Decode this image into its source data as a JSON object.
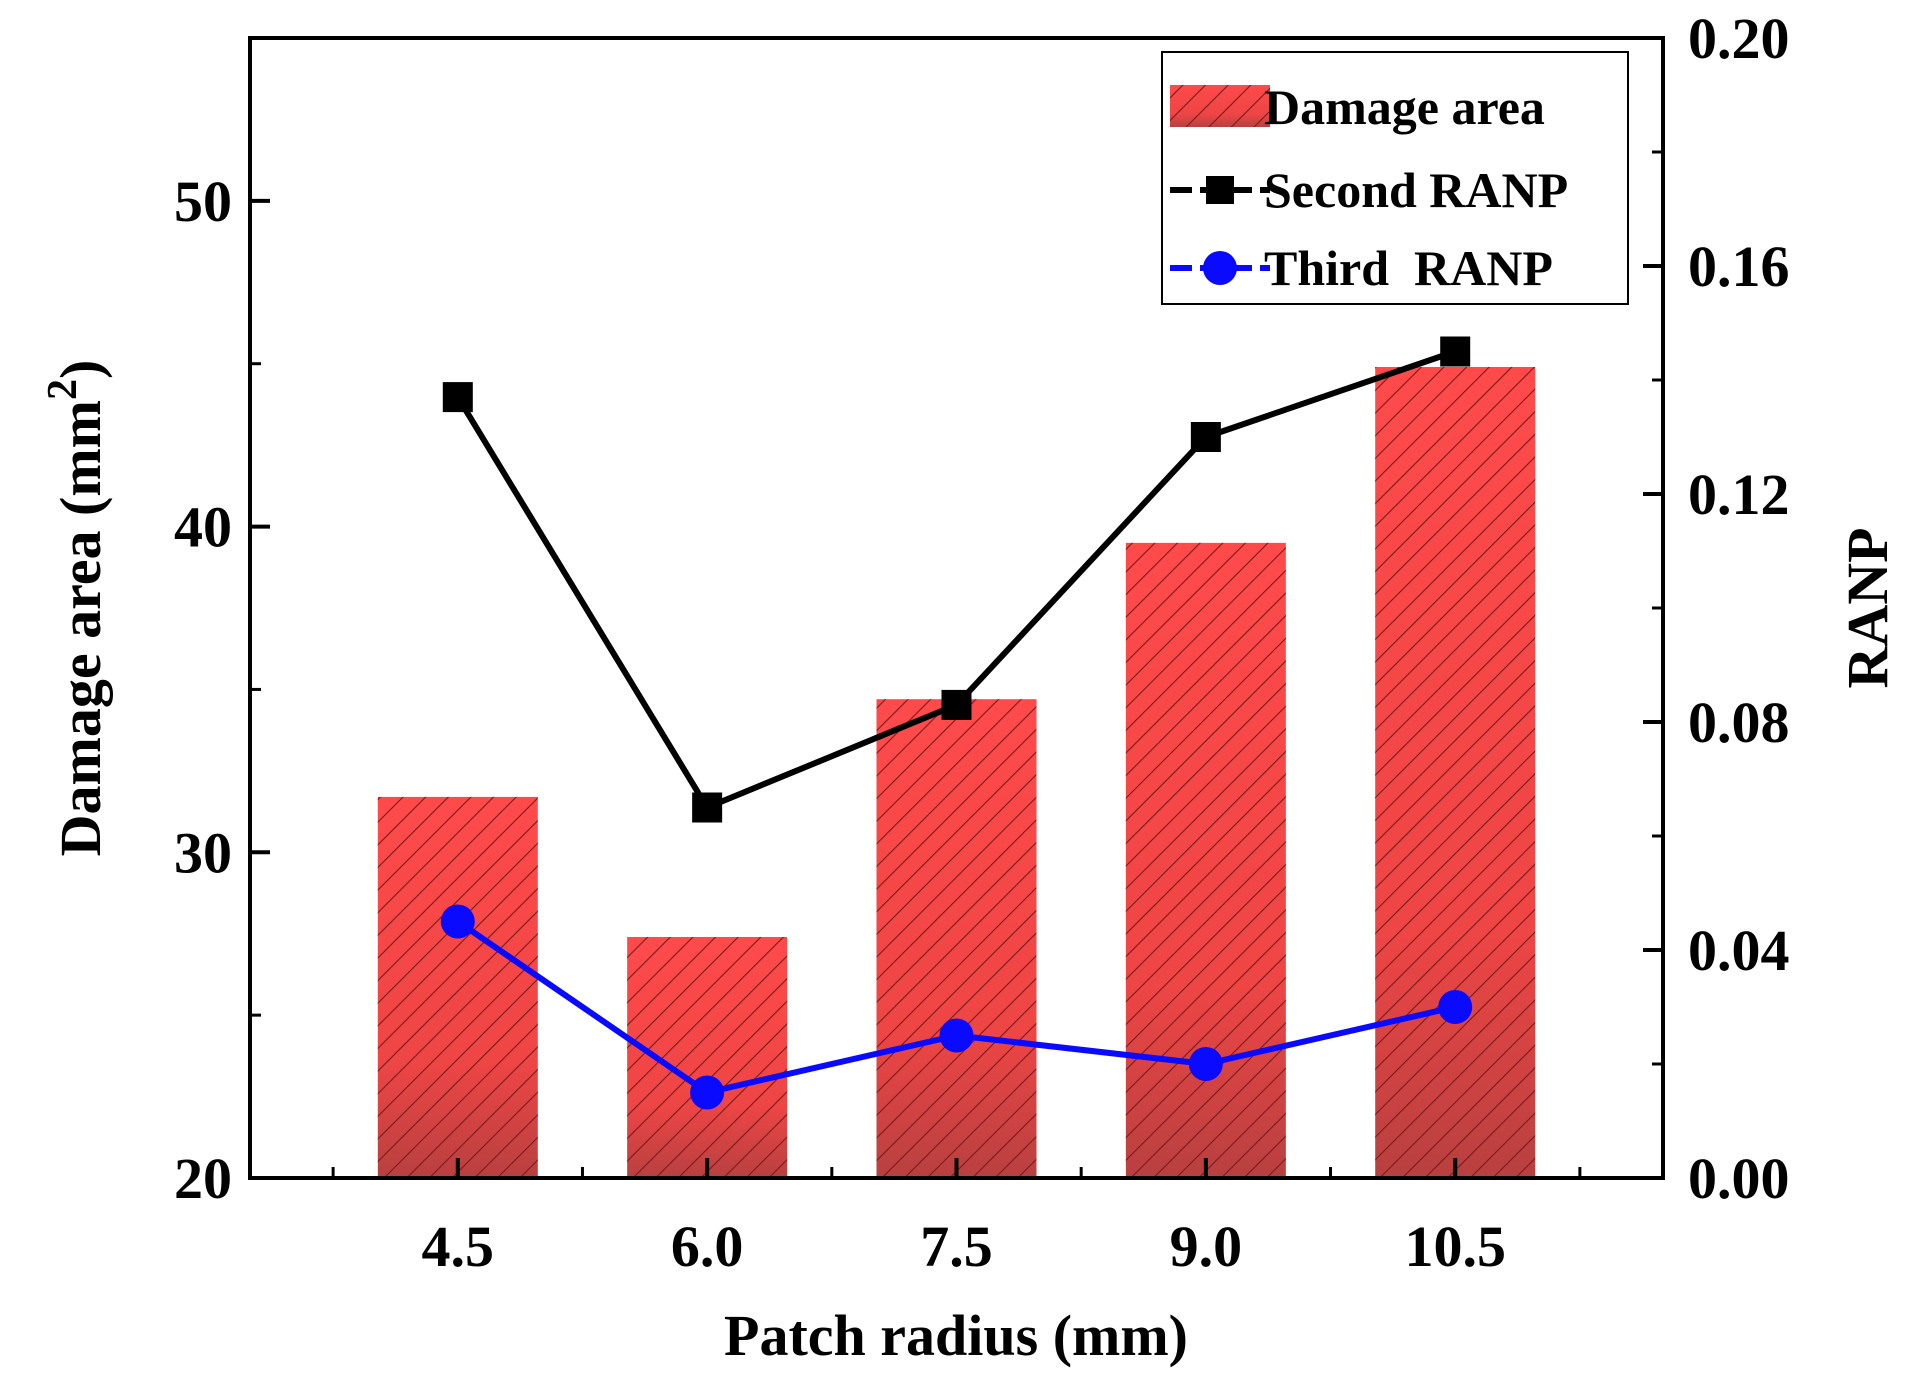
{
  "chart_data": {
    "type": "bar",
    "categories": [
      "4.5",
      "6.0",
      "7.5",
      "9.0",
      "10.5"
    ],
    "x": [
      4.5,
      6.0,
      7.5,
      9.0,
      10.5
    ],
    "xlabel": "Patch radius (mm)",
    "ylabel_left": "Damage area (mm",
    "ylabel_left_sup": "2",
    "ylabel_left_close": ")",
    "ylabel_right": "RANP",
    "ylim_left": [
      20,
      55
    ],
    "ylim_right": [
      0,
      0.2
    ],
    "yticks_left": [
      "20",
      "30",
      "40",
      "50"
    ],
    "yticks_right": [
      "0.00",
      "0.04",
      "0.08",
      "0.12",
      "0.16",
      "0.20"
    ],
    "grid": false,
    "legend_position": "top-right",
    "series": [
      {
        "name": "Damage area",
        "kind": "bar",
        "axis": "left",
        "color": "#ff4a4a",
        "hatch": true,
        "values": [
          31.7,
          27.4,
          34.7,
          39.5,
          44.9
        ]
      },
      {
        "name": "Second RANP",
        "kind": "line",
        "axis": "right",
        "marker": "square",
        "color": "#000000",
        "values": [
          0.137,
          0.065,
          0.083,
          0.13,
          0.145
        ]
      },
      {
        "name": "Third  RANP",
        "kind": "line",
        "axis": "right",
        "marker": "circle",
        "color": "#0a0aff",
        "values": [
          0.045,
          0.015,
          0.025,
          0.02,
          0.03
        ]
      }
    ]
  }
}
